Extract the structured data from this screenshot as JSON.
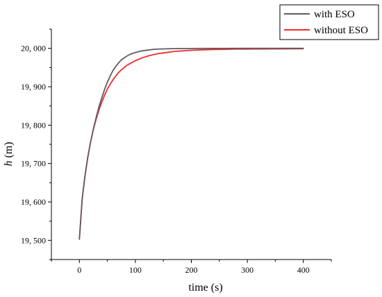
{
  "chart_data": {
    "type": "line",
    "title": "",
    "xlabel": "time (s)",
    "ylabel_var": "h",
    "ylabel_unit": " (m)",
    "xlim": [
      -50,
      450
    ],
    "ylim": [
      19450,
      20050
    ],
    "x_ticks": [
      0,
      100,
      200,
      300,
      400
    ],
    "x_tick_labels": [
      "0",
      "100",
      "200",
      "300",
      "400"
    ],
    "y_ticks": [
      19500,
      19600,
      19700,
      19800,
      19900,
      20000
    ],
    "y_tick_labels": [
      "19, 500",
      "19, 600",
      "19, 700",
      "19, 800",
      "19, 900",
      "20, 000"
    ],
    "grid": false,
    "legend_position": "top-right",
    "series": [
      {
        "name": "with ESO",
        "color": "#5f5a64",
        "x": [
          0,
          5,
          10,
          15,
          20,
          25,
          30,
          35,
          40,
          45,
          50,
          55,
          60,
          65,
          70,
          75,
          80,
          85,
          90,
          95,
          100,
          110,
          120,
          130,
          140,
          150,
          160,
          170,
          180,
          200,
          220,
          240,
          260,
          280,
          300,
          320,
          340,
          360,
          380,
          400
        ],
        "y": [
          19503,
          19608,
          19668,
          19716,
          19756,
          19790,
          19820,
          19848,
          19871,
          19893,
          19912,
          19928,
          19942,
          19953,
          19962,
          19970,
          19975,
          19980,
          19984,
          19987,
          19989,
          19993,
          19995,
          19997,
          19998,
          19998.5,
          19999,
          19999.2,
          19999.4,
          19999.6,
          19999.7,
          19999.8,
          19999.9,
          20000,
          20000,
          20000,
          20000,
          20000,
          20000,
          20000
        ]
      },
      {
        "name": "without ESO",
        "color": "#ee2b2b",
        "x": [
          0,
          5,
          10,
          15,
          20,
          25,
          30,
          35,
          40,
          45,
          50,
          55,
          60,
          65,
          70,
          75,
          80,
          85,
          90,
          95,
          100,
          110,
          120,
          130,
          140,
          150,
          160,
          170,
          180,
          200,
          220,
          240,
          260,
          280,
          300,
          320,
          340,
          360,
          380,
          400
        ],
        "y": [
          19503,
          19608,
          19668,
          19716,
          19756,
          19789,
          19816,
          19840,
          19860,
          19878,
          19894,
          19907,
          19918,
          19928,
          19937,
          19944,
          19950,
          19956,
          19960,
          19964,
          19968,
          19974,
          19979,
          19983,
          19986,
          19988,
          19990,
          19992,
          19993,
          19995,
          19996,
          19997,
          19997.5,
          19998,
          19998,
          19998.3,
          19998.5,
          19998.6,
          19998.8,
          19999
        ]
      }
    ]
  }
}
